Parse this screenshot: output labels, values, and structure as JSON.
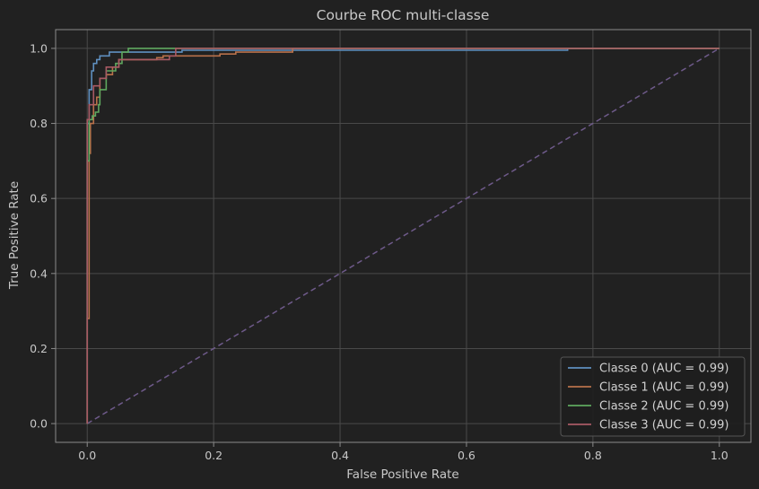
{
  "chart_data": {
    "type": "line",
    "title": "Courbe ROC multi-classe",
    "xlabel": "False Positive Rate",
    "ylabel": "True Positive Rate",
    "xlim": [
      -0.05,
      1.05
    ],
    "ylim": [
      -0.05,
      1.05
    ],
    "xticks": [
      "0.0",
      "0.2",
      "0.4",
      "0.6",
      "0.8",
      "1.0"
    ],
    "yticks": [
      "0.0",
      "0.2",
      "0.4",
      "0.6",
      "0.8",
      "1.0"
    ],
    "grid": true,
    "legend_position": "lower-right",
    "colors": {
      "background": "#212121",
      "grid": "#4a4a4a",
      "text": "#c8c8c8",
      "diagonal": "#6e5a8a"
    },
    "diagonal": {
      "x": [
        0,
        1
      ],
      "y": [
        0,
        1
      ],
      "style": "dashed"
    },
    "series": [
      {
        "name": "Classe 0 (AUC = 0.99)",
        "color": "#5f8fbf",
        "x": [
          0,
          0,
          0.003,
          0.003,
          0.007,
          0.007,
          0.01,
          0.01,
          0.015,
          0.015,
          0.02,
          0.02,
          0.035,
          0.035,
          0.055,
          0.055,
          0.15,
          0.15,
          0.76,
          0.76,
          1.0
        ],
        "y": [
          0,
          0.8,
          0.8,
          0.89,
          0.89,
          0.94,
          0.94,
          0.96,
          0.96,
          0.97,
          0.97,
          0.98,
          0.98,
          0.99,
          0.99,
          0.99,
          0.99,
          0.995,
          0.995,
          1.0,
          1.0
        ]
      },
      {
        "name": "Classe 1 (AUC = 0.99)",
        "color": "#b8714a",
        "x": [
          0,
          0,
          0.003,
          0.003,
          0.005,
          0.005,
          0.01,
          0.01,
          0.015,
          0.015,
          0.02,
          0.02,
          0.03,
          0.03,
          0.04,
          0.04,
          0.05,
          0.05,
          0.11,
          0.11,
          0.12,
          0.12,
          0.21,
          0.21,
          0.235,
          0.235,
          0.325,
          0.325,
          1.0
        ],
        "y": [
          0,
          0.28,
          0.28,
          0.72,
          0.72,
          0.8,
          0.8,
          0.85,
          0.85,
          0.87,
          0.87,
          0.92,
          0.92,
          0.93,
          0.93,
          0.95,
          0.95,
          0.97,
          0.97,
          0.975,
          0.975,
          0.98,
          0.98,
          0.985,
          0.985,
          0.99,
          0.99,
          1.0,
          1.0
        ]
      },
      {
        "name": "Classe 2 (AUC = 0.99)",
        "color": "#5fa85f",
        "x": [
          0,
          0,
          0.003,
          0.003,
          0.008,
          0.008,
          0.013,
          0.013,
          0.018,
          0.018,
          0.02,
          0.02,
          0.03,
          0.03,
          0.045,
          0.045,
          0.055,
          0.055,
          0.065,
          0.065,
          1.0
        ],
        "y": [
          0,
          0.7,
          0.7,
          0.81,
          0.81,
          0.82,
          0.82,
          0.83,
          0.83,
          0.85,
          0.85,
          0.89,
          0.89,
          0.94,
          0.94,
          0.96,
          0.96,
          0.99,
          0.99,
          1.0,
          1.0
        ]
      },
      {
        "name": "Classe 3 (AUC = 0.99)",
        "color": "#a85a64",
        "x": [
          0,
          0,
          0.003,
          0.003,
          0.01,
          0.01,
          0.02,
          0.02,
          0.03,
          0.03,
          0.05,
          0.05,
          0.13,
          0.13,
          0.14,
          0.14,
          1.0
        ],
        "y": [
          0,
          0.81,
          0.81,
          0.85,
          0.85,
          0.9,
          0.9,
          0.92,
          0.92,
          0.95,
          0.95,
          0.97,
          0.97,
          0.98,
          0.98,
          1.0,
          1.0
        ]
      }
    ]
  }
}
